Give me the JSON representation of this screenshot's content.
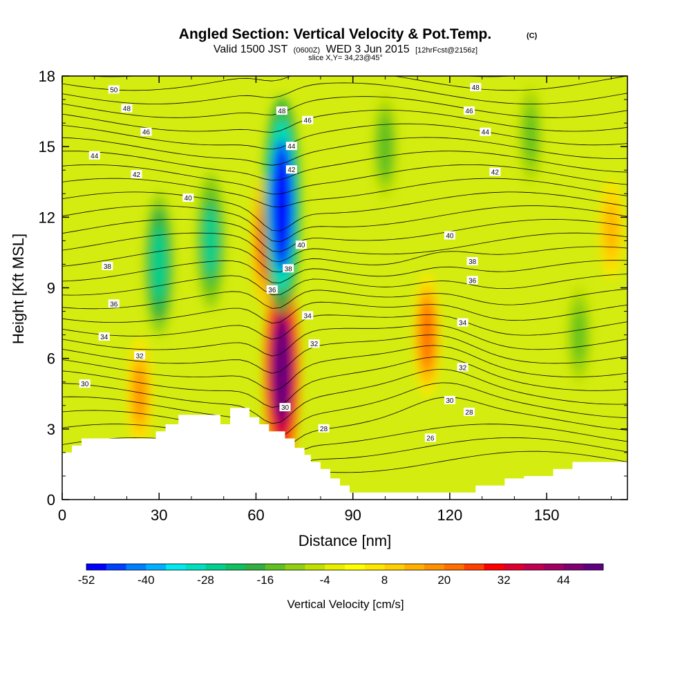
{
  "chart_data": {
    "type": "heatmap",
    "title": "Angled Section: Vertical Velocity & Pot.Temp.",
    "title_mark": "(C)",
    "subtitle": {
      "valid": "Valid 1500 JST",
      "zulu": "(0600Z)",
      "date": "WED 3 Jun 2015",
      "forecast": "[12hrFcst@2156z]",
      "slice": "slice X,Y= 34,23@45°"
    },
    "xlabel": "Distance [nm]",
    "ylabel": "Height [Kft MSL]",
    "xlim": [
      0,
      175
    ],
    "ylim": [
      0,
      18
    ],
    "x_ticks": [
      0,
      30,
      60,
      90,
      120,
      150
    ],
    "y_ticks": [
      0,
      3,
      6,
      9,
      12,
      15,
      18
    ],
    "colorbar": {
      "label": "Vertical Velocity [cm/s]",
      "tick_labels": [
        "-52",
        "-40",
        "-28",
        "-16",
        "-4",
        "8",
        "20",
        "32",
        "44"
      ],
      "tick_values": [
        -52,
        -40,
        -28,
        -16,
        -4,
        8,
        20,
        32,
        44
      ],
      "min": -52,
      "max": 52,
      "colors": [
        "#0000ff",
        "#0040ff",
        "#0080ff",
        "#00b0ff",
        "#00e8f0",
        "#00e0c0",
        "#00d090",
        "#10c060",
        "#30b040",
        "#60c020",
        "#90d010",
        "#c0e000",
        "#e8f000",
        "#ffff00",
        "#ffe800",
        "#ffd000",
        "#ffb000",
        "#ff9000",
        "#ff7000",
        "#ff4000",
        "#ff0000",
        "#e00030",
        "#c00050",
        "#a00060",
        "#800070",
        "#600080"
      ]
    },
    "vertical_velocity_features": [
      {
        "type": "updraft",
        "x": 63,
        "y": 11.0,
        "peak": 25
      },
      {
        "type": "updraft",
        "x": 68,
        "y": 5.5,
        "peak": 48
      },
      {
        "type": "updraft",
        "x": 113,
        "y": 7.0,
        "peak": 22
      },
      {
        "type": "updraft",
        "x": 24,
        "y": 4.5,
        "peak": 18
      },
      {
        "type": "updraft",
        "x": 170,
        "y": 11.5,
        "peak": 14
      },
      {
        "type": "downdraft",
        "x": 68,
        "y": 12.5,
        "peak": -52
      },
      {
        "type": "downdraft",
        "x": 30,
        "y": 10.0,
        "peak": -28
      },
      {
        "type": "downdraft",
        "x": 46,
        "y": 11.0,
        "peak": -26
      },
      {
        "type": "downdraft",
        "x": 100,
        "y": 15.0,
        "peak": -16
      },
      {
        "type": "downdraft",
        "x": 145,
        "y": 15.5,
        "peak": -14
      },
      {
        "type": "downdraft",
        "x": 160,
        "y": 7.0,
        "peak": -14
      }
    ],
    "potential_temperature_labels": [
      {
        "text": "50",
        "x": 16,
        "y": 17.4
      },
      {
        "text": "48",
        "x": 20,
        "y": 16.6
      },
      {
        "text": "46",
        "x": 26,
        "y": 15.6
      },
      {
        "text": "44",
        "x": 10,
        "y": 14.6
      },
      {
        "text": "42",
        "x": 23,
        "y": 13.8
      },
      {
        "text": "40",
        "x": 39,
        "y": 12.8
      },
      {
        "text": "38",
        "x": 14,
        "y": 9.9
      },
      {
        "text": "36",
        "x": 16,
        "y": 8.3
      },
      {
        "text": "34",
        "x": 13,
        "y": 6.9
      },
      {
        "text": "32",
        "x": 24,
        "y": 6.1
      },
      {
        "text": "30",
        "x": 7,
        "y": 4.9
      },
      {
        "text": "48",
        "x": 68,
        "y": 16.5
      },
      {
        "text": "46",
        "x": 76,
        "y": 16.1
      },
      {
        "text": "44",
        "x": 71,
        "y": 15.0
      },
      {
        "text": "42",
        "x": 71,
        "y": 14.0
      },
      {
        "text": "40",
        "x": 74,
        "y": 10.8
      },
      {
        "text": "38",
        "x": 70,
        "y": 9.8
      },
      {
        "text": "36",
        "x": 65,
        "y": 8.9
      },
      {
        "text": "34",
        "x": 76,
        "y": 7.8
      },
      {
        "text": "32",
        "x": 78,
        "y": 6.6
      },
      {
        "text": "30",
        "x": 69,
        "y": 3.9
      },
      {
        "text": "28",
        "x": 81,
        "y": 3.0
      },
      {
        "text": "48",
        "x": 128,
        "y": 17.5
      },
      {
        "text": "46",
        "x": 126,
        "y": 16.5
      },
      {
        "text": "44",
        "x": 131,
        "y": 15.6
      },
      {
        "text": "42",
        "x": 134,
        "y": 13.9
      },
      {
        "text": "40",
        "x": 120,
        "y": 11.2
      },
      {
        "text": "38",
        "x": 127,
        "y": 10.1
      },
      {
        "text": "36",
        "x": 127,
        "y": 9.3
      },
      {
        "text": "34",
        "x": 124,
        "y": 7.5
      },
      {
        "text": "32",
        "x": 124,
        "y": 5.6
      },
      {
        "text": "30",
        "x": 120,
        "y": 4.2
      },
      {
        "text": "28",
        "x": 126,
        "y": 3.7
      },
      {
        "text": "26",
        "x": 114,
        "y": 2.6
      }
    ],
    "terrain": [
      [
        0,
        2.0
      ],
      [
        3,
        2.0
      ],
      [
        3,
        2.3
      ],
      [
        6,
        2.3
      ],
      [
        6,
        2.6
      ],
      [
        14,
        2.6
      ],
      [
        14,
        2.6
      ],
      [
        20,
        2.6
      ],
      [
        20,
        2.6
      ],
      [
        29,
        2.6
      ],
      [
        29,
        2.9
      ],
      [
        32,
        2.9
      ],
      [
        32,
        3.2
      ],
      [
        36,
        3.2
      ],
      [
        36,
        3.6
      ],
      [
        49,
        3.6
      ],
      [
        49,
        3.2
      ],
      [
        52,
        3.2
      ],
      [
        52,
        3.9
      ],
      [
        58,
        3.9
      ],
      [
        58,
        3.5
      ],
      [
        61,
        3.5
      ],
      [
        61,
        3.2
      ],
      [
        64,
        3.2
      ],
      [
        64,
        2.9
      ],
      [
        69,
        2.9
      ],
      [
        69,
        2.6
      ],
      [
        72,
        2.6
      ],
      [
        72,
        2.2
      ],
      [
        75,
        2.2
      ],
      [
        75,
        1.9
      ],
      [
        77,
        1.9
      ],
      [
        77,
        1.6
      ],
      [
        80,
        1.6
      ],
      [
        80,
        1.3
      ],
      [
        83,
        1.3
      ],
      [
        83,
        0.9
      ],
      [
        86,
        0.9
      ],
      [
        86,
        0.6
      ],
      [
        89,
        0.6
      ],
      [
        89,
        0.3
      ],
      [
        128,
        0.3
      ],
      [
        128,
        0.6
      ],
      [
        137,
        0.6
      ],
      [
        137,
        0.9
      ],
      [
        143,
        0.9
      ],
      [
        143,
        1.0
      ],
      [
        152,
        1.0
      ],
      [
        152,
        1.3
      ],
      [
        158,
        1.3
      ],
      [
        158,
        1.6
      ],
      [
        175,
        1.6
      ]
    ]
  }
}
